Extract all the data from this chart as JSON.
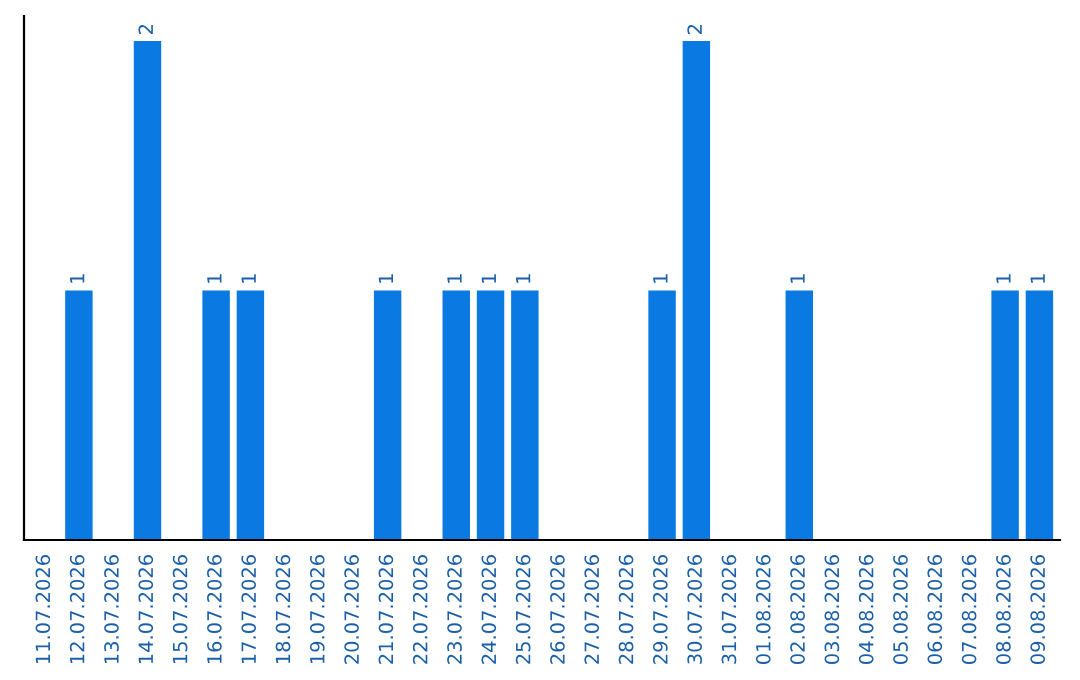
{
  "chart_data": {
    "type": "bar",
    "categories": [
      "11.07.2026",
      "12.07.2026",
      "13.07.2026",
      "14.07.2026",
      "15.07.2026",
      "16.07.2026",
      "17.07.2026",
      "18.07.2026",
      "19.07.2026",
      "20.07.2026",
      "21.07.2026",
      "22.07.2026",
      "23.07.2026",
      "24.07.2026",
      "25.07.2026",
      "26.07.2026",
      "27.07.2026",
      "28.07.2026",
      "29.07.2026",
      "30.07.2026",
      "31.07.2026",
      "01.08.2026",
      "02.08.2026",
      "03.08.2026",
      "04.08.2026",
      "05.08.2026",
      "06.08.2026",
      "07.08.2026",
      "08.08.2026",
      "09.08.2026"
    ],
    "values": [
      0,
      1,
      0,
      2,
      0,
      1,
      1,
      0,
      0,
      0,
      1,
      0,
      1,
      1,
      1,
      0,
      0,
      0,
      1,
      2,
      0,
      0,
      1,
      0,
      0,
      0,
      0,
      0,
      1,
      1
    ],
    "value_labels": [
      null,
      "1",
      null,
      "2",
      null,
      "1",
      "1",
      null,
      null,
      null,
      "1",
      null,
      "1",
      "1",
      "1",
      null,
      null,
      null,
      "1",
      "2",
      null,
      null,
      "1",
      null,
      null,
      null,
      null,
      null,
      "1",
      "1"
    ],
    "color": "#0a7ae2",
    "ylim": [
      0,
      2.1
    ],
    "tick_labels": "x",
    "grid": false
  }
}
